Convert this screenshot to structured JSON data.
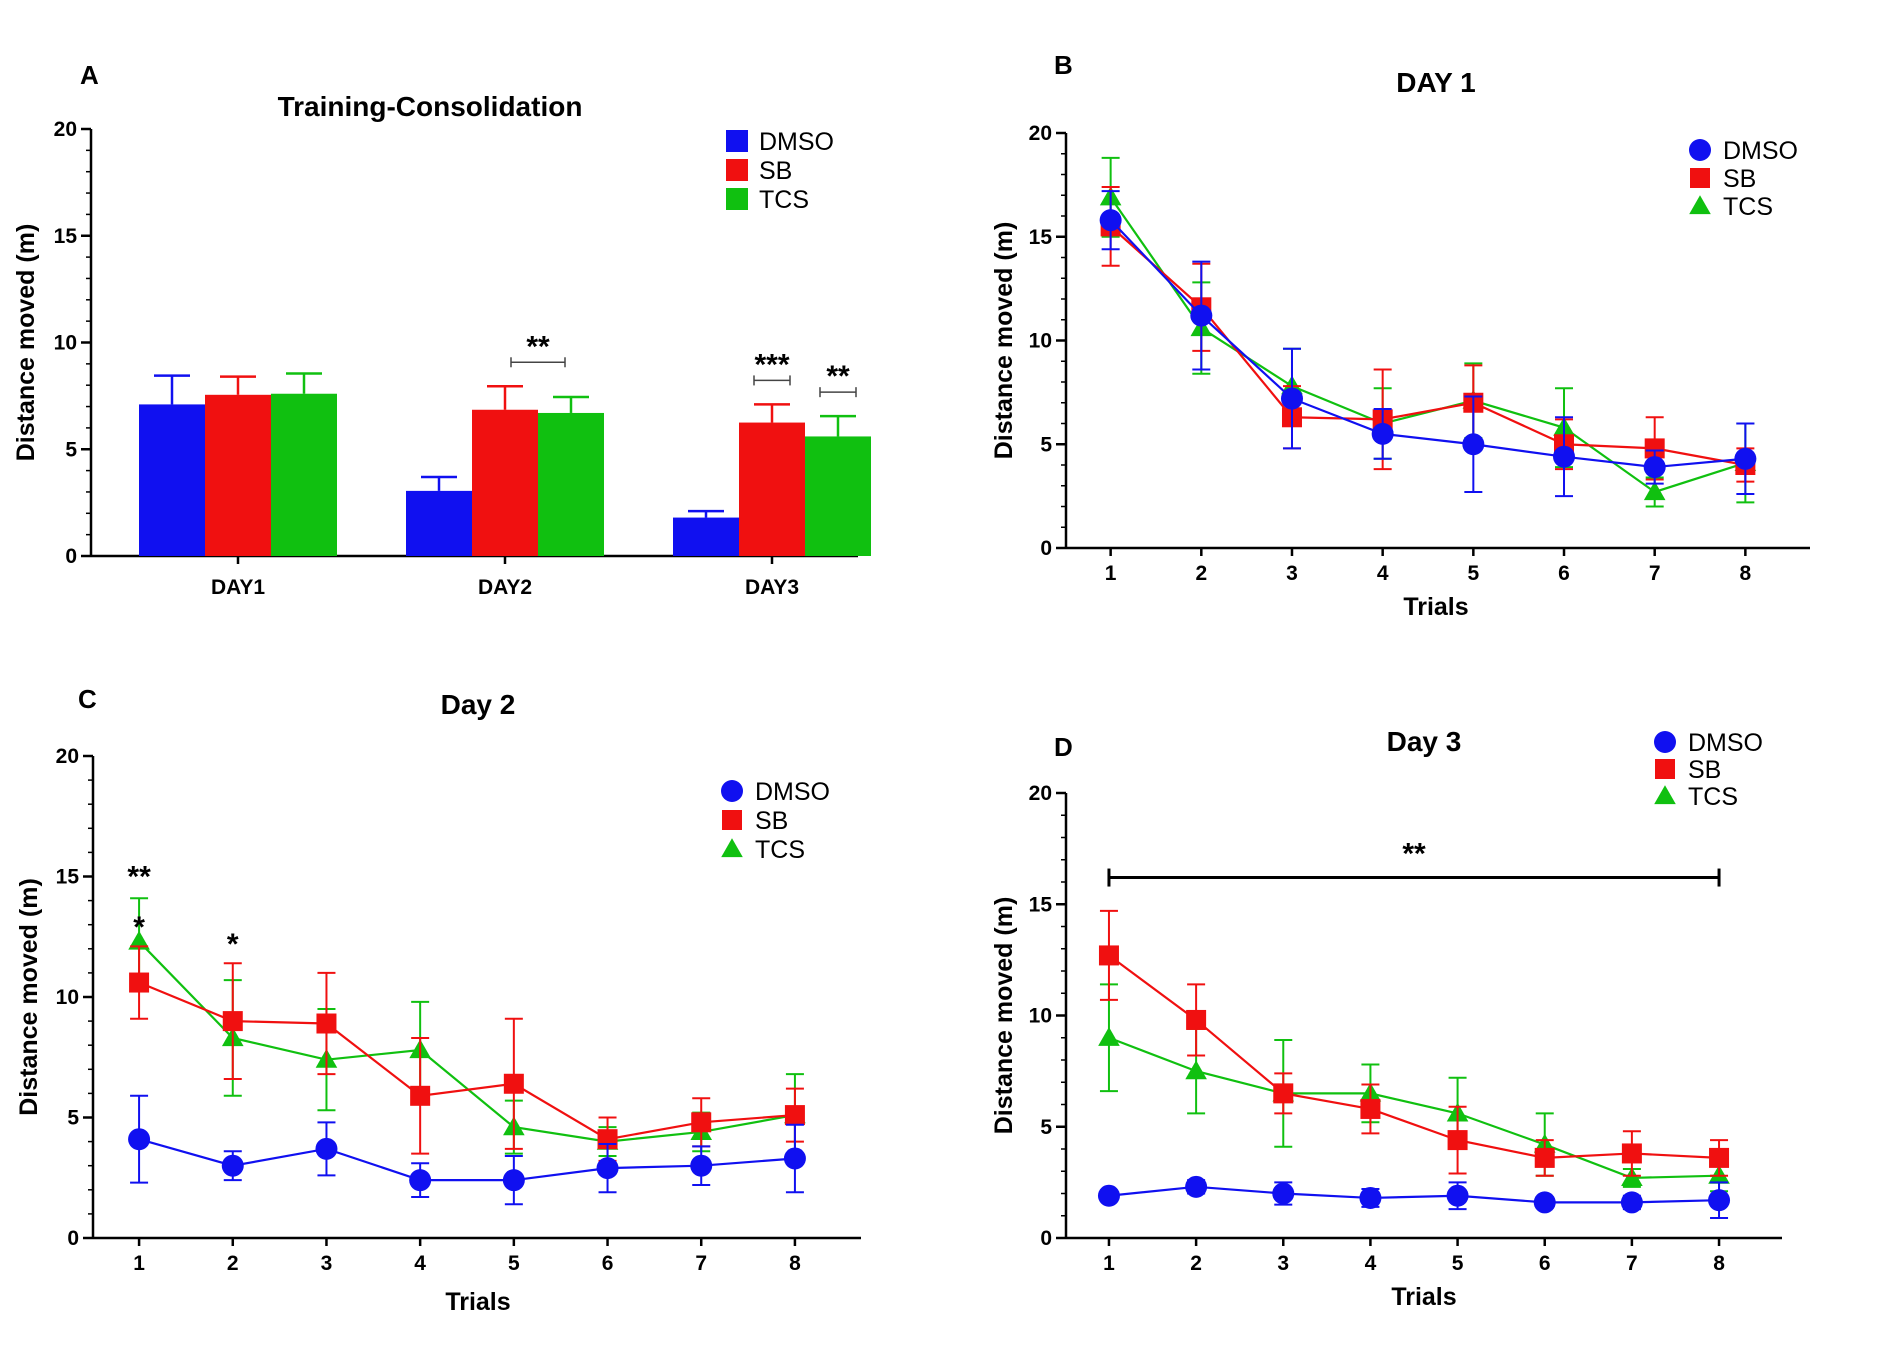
{
  "colors": {
    "DMSO": "#1010f0",
    "SB": "#f01010",
    "TCS": "#10c010",
    "axis": "#000000"
  },
  "chart_data": [
    {
      "panel": "A",
      "type": "bar",
      "title": "Training-Consolidation",
      "ylabel": "Distance moved (m)",
      "xlabel": "",
      "ylim": [
        0,
        20
      ],
      "yticks": [
        0,
        5,
        10,
        15,
        20
      ],
      "categories": [
        "DAY1",
        "DAY2",
        "DAY3"
      ],
      "series": [
        {
          "name": "DMSO",
          "values": [
            7.1,
            3.05,
            1.8
          ],
          "errors": [
            1.35,
            0.65,
            0.3
          ]
        },
        {
          "name": "SB",
          "values": [
            7.55,
            6.85,
            6.25
          ],
          "errors": [
            0.85,
            1.1,
            0.85
          ]
        },
        {
          "name": "TCS",
          "values": [
            7.6,
            6.7,
            5.6
          ],
          "errors": [
            0.95,
            0.75,
            0.95
          ]
        }
      ],
      "significance": [
        {
          "label": "**",
          "category": 1,
          "from_series": 1,
          "to_series": 2
        },
        {
          "label": "***",
          "category": 2,
          "from_series": 1,
          "to_series": 1
        },
        {
          "label": "**",
          "category": 2,
          "from_series": 2,
          "to_series": 2
        }
      ],
      "legend_position": "top-right"
    },
    {
      "panel": "B",
      "type": "line",
      "title": "DAY 1",
      "ylabel": "Distance moved (m)",
      "xlabel": "Trials",
      "ylim": [
        0,
        20
      ],
      "yticks": [
        0,
        5,
        10,
        15,
        20
      ],
      "x": [
        1,
        2,
        3,
        4,
        5,
        6,
        7,
        8
      ],
      "series": [
        {
          "name": "DMSO",
          "marker": "circle",
          "values": [
            15.8,
            11.2,
            7.2,
            5.5,
            5.0,
            4.4,
            3.9,
            4.3
          ],
          "errors": [
            1.4,
            2.6,
            2.4,
            1.2,
            2.3,
            1.9,
            0.8,
            1.7
          ]
        },
        {
          "name": "SB",
          "marker": "square",
          "values": [
            15.5,
            11.6,
            6.3,
            6.2,
            7.0,
            5.0,
            4.8,
            4.0
          ],
          "errors": [
            1.9,
            2.1,
            1.5,
            2.4,
            1.8,
            1.2,
            1.5,
            0.8
          ]
        },
        {
          "name": "TCS",
          "marker": "triangle",
          "values": [
            16.9,
            10.6,
            7.8,
            6.0,
            7.1,
            5.8,
            2.7,
            4.1
          ],
          "errors": [
            1.9,
            2.2,
            1.8,
            1.7,
            1.8,
            1.9,
            0.7,
            1.9
          ]
        }
      ],
      "legend_position": "top-right"
    },
    {
      "panel": "C",
      "type": "line",
      "title": "Day 2",
      "ylabel": "Distance moved (m)",
      "xlabel": "Trials",
      "ylim": [
        0,
        20
      ],
      "yticks": [
        0,
        5,
        10,
        15,
        20
      ],
      "x": [
        1,
        2,
        3,
        4,
        5,
        6,
        7,
        8
      ],
      "series": [
        {
          "name": "DMSO",
          "marker": "circle",
          "values": [
            4.1,
            3.0,
            3.7,
            2.4,
            2.4,
            2.9,
            3.0,
            3.3
          ],
          "errors": [
            1.8,
            0.6,
            1.1,
            0.7,
            1.0,
            1.0,
            0.8,
            1.4
          ]
        },
        {
          "name": "SB",
          "marker": "square",
          "values": [
            10.6,
            9.0,
            8.9,
            5.9,
            6.4,
            4.1,
            4.8,
            5.1
          ],
          "errors": [
            1.5,
            2.4,
            2.1,
            2.4,
            2.7,
            0.9,
            1.0,
            1.1
          ]
        },
        {
          "name": "TCS",
          "marker": "triangle",
          "values": [
            12.3,
            8.3,
            7.4,
            7.8,
            4.6,
            4.0,
            4.4,
            5.1
          ],
          "errors": [
            1.8,
            2.4,
            2.1,
            2.0,
            1.1,
            0.6,
            0.8,
            1.7
          ]
        }
      ],
      "significance": [
        {
          "label": "**",
          "x": 1,
          "y": 15.0
        },
        {
          "label": "*",
          "x": 1,
          "y": 12.9
        },
        {
          "label": "*",
          "x": 2,
          "y": 12.2
        }
      ],
      "legend_position": "top-right"
    },
    {
      "panel": "D",
      "type": "line",
      "title": "Day 3",
      "ylabel": "Distance moved (m)",
      "xlabel": "Trials",
      "ylim": [
        0,
        20
      ],
      "yticks": [
        0,
        5,
        10,
        15,
        20
      ],
      "x": [
        1,
        2,
        3,
        4,
        5,
        6,
        7,
        8
      ],
      "series": [
        {
          "name": "DMSO",
          "marker": "circle",
          "values": [
            1.9,
            2.3,
            2.0,
            1.8,
            1.9,
            1.6,
            1.6,
            1.7
          ],
          "errors": [
            0.2,
            0.3,
            0.5,
            0.4,
            0.6,
            0.2,
            0.3,
            0.8
          ]
        },
        {
          "name": "SB",
          "marker": "square",
          "values": [
            12.7,
            9.8,
            6.5,
            5.8,
            4.4,
            3.6,
            3.8,
            3.6
          ],
          "errors": [
            2.0,
            1.6,
            0.9,
            1.1,
            1.5,
            0.8,
            1.0,
            0.8
          ]
        },
        {
          "name": "TCS",
          "marker": "triangle",
          "values": [
            9.0,
            7.5,
            6.5,
            6.5,
            5.6,
            4.2,
            2.7,
            2.8
          ],
          "errors": [
            2.4,
            1.9,
            2.4,
            1.3,
            1.6,
            1.4,
            0.4,
            0.7
          ]
        }
      ],
      "significance": [
        {
          "label": "**",
          "x_from": 1,
          "x_to": 8,
          "y": 16.2
        }
      ],
      "legend_position": "top-right"
    }
  ]
}
